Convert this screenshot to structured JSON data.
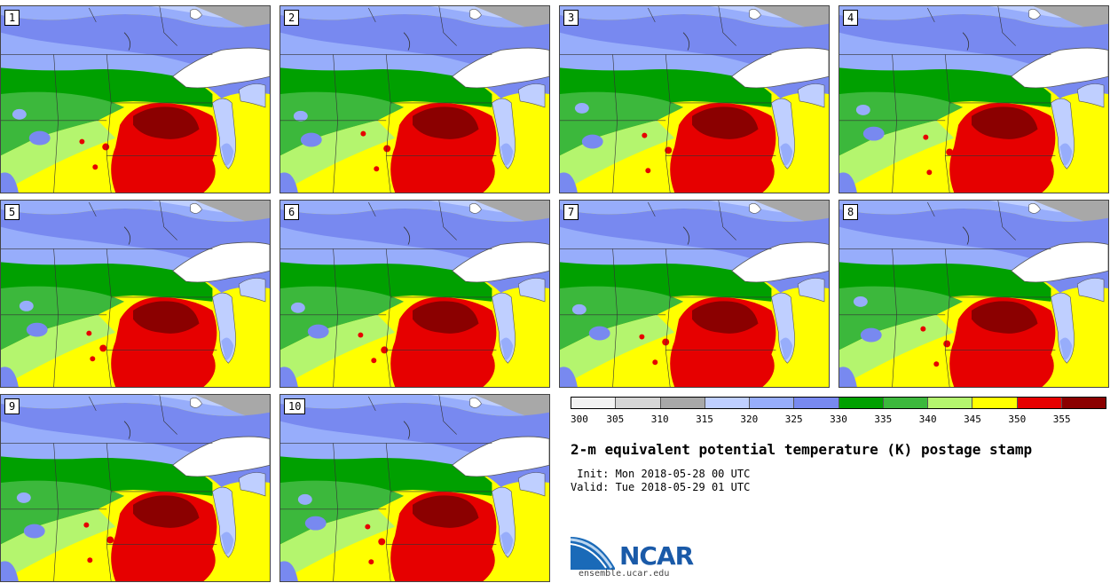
{
  "panels": [
    {
      "label": "1"
    },
    {
      "label": "2"
    },
    {
      "label": "3"
    },
    {
      "label": "4"
    },
    {
      "label": "5"
    },
    {
      "label": "6"
    },
    {
      "label": "7"
    },
    {
      "label": "8"
    },
    {
      "label": "9"
    },
    {
      "label": "10"
    }
  ],
  "legend": {
    "colors": [
      "#f2f2f2",
      "#d6d6d6",
      "#a8a8a8",
      "#bfcfff",
      "#97adfb",
      "#7889f0",
      "#00a000",
      "#3cb83c",
      "#b4f56e",
      "#ffff00",
      "#e60000",
      "#8b0000"
    ],
    "labels": [
      "300",
      "305",
      "310",
      "315",
      "320",
      "325",
      "330",
      "335",
      "340",
      "345",
      "350",
      "355"
    ]
  },
  "title": "2-m equivalent potential temperature (K) postage stamp",
  "init_line": " Init: Mon 2018-05-28 00 UTC",
  "valid_line": "Valid: Tue 2018-05-29 01 UTC",
  "logo": {
    "text": "NCAR",
    "site": "ensemble.ucar.edu"
  }
}
